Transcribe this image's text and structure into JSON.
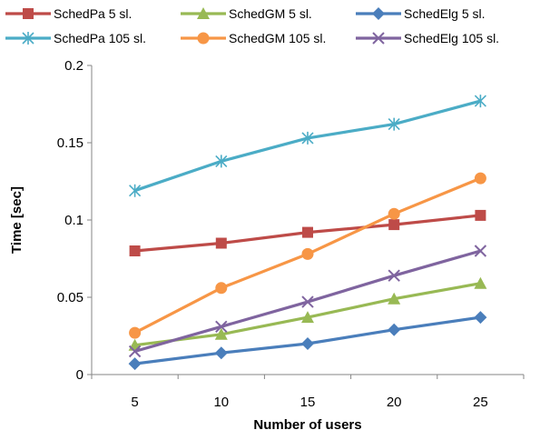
{
  "chart_data": {
    "type": "line",
    "title": "",
    "xlabel": "Number of users",
    "ylabel": "Time [sec]",
    "x": [
      5,
      10,
      15,
      20,
      25
    ],
    "xticks": [
      "5",
      "10",
      "15",
      "20",
      "25"
    ],
    "yticks": [
      "0",
      "0.05",
      "0.1",
      "0.15",
      "0.2"
    ],
    "xlim": [
      2.5,
      27.5
    ],
    "ylim": [
      0,
      0.2
    ],
    "grid": "none",
    "legend_position": "top",
    "series": [
      {
        "name": "SchedPa 5 sl.",
        "color": "#BE4B48",
        "marker": "square",
        "values": [
          0.08,
          0.085,
          0.092,
          0.097,
          0.103
        ]
      },
      {
        "name": "SchedGM 5 sl.",
        "color": "#98B954",
        "marker": "triangle",
        "values": [
          0.019,
          0.026,
          0.037,
          0.049,
          0.059
        ]
      },
      {
        "name": "SchedElg 5 sl.",
        "color": "#4A7EBB",
        "marker": "diamond",
        "values": [
          0.007,
          0.014,
          0.02,
          0.029,
          0.037
        ]
      },
      {
        "name": "SchedPa 105 sl.",
        "color": "#4BACC6",
        "marker": "asterisk",
        "values": [
          0.119,
          0.138,
          0.153,
          0.162,
          0.177
        ]
      },
      {
        "name": "SchedGM 105 sl.",
        "color": "#F79646",
        "marker": "circle",
        "values": [
          0.027,
          0.056,
          0.078,
          0.104,
          0.127
        ]
      },
      {
        "name": "SchedElg 105 sl.",
        "color": "#7F649F",
        "marker": "x",
        "values": [
          0.015,
          0.031,
          0.047,
          0.064,
          0.08
        ]
      }
    ]
  }
}
